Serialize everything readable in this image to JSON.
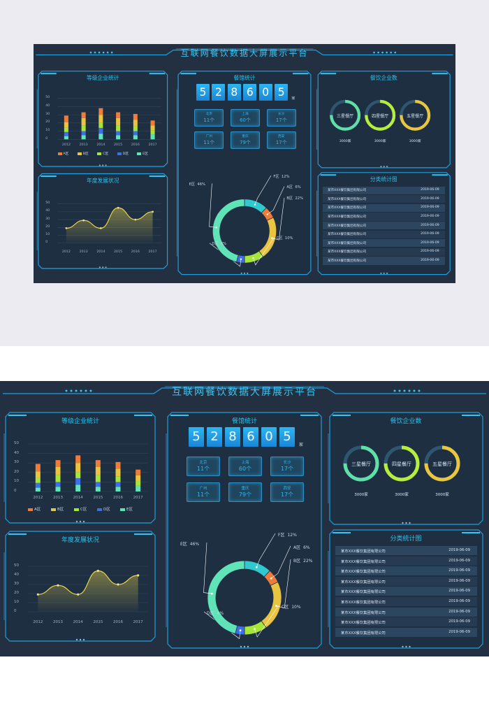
{
  "title": "互联网餐饮数据大屏展示平台",
  "panels": {
    "grade": {
      "title": "等级企业统计"
    },
    "annual": {
      "title": "年度发展状况"
    },
    "restaurant": {
      "title": "餐馆统计"
    },
    "enterprise": {
      "title": "餐饮企业数"
    },
    "category": {
      "title": "分类统计图"
    }
  },
  "counter": {
    "digits": [
      "5",
      "2",
      "8",
      "6",
      "0",
      "5"
    ],
    "unit": "家"
  },
  "cities": [
    {
      "name": "北京",
      "count": "11个"
    },
    {
      "name": "上海",
      "count": "60个"
    },
    {
      "name": "长沙",
      "count": "17个"
    },
    {
      "name": "广州",
      "count": "11个"
    },
    {
      "name": "重庆",
      "count": "79个"
    },
    {
      "name": "西安",
      "count": "17个"
    }
  ],
  "rings": [
    {
      "label": "三星餐厅",
      "value": "3000家",
      "color": "#5ee0a8"
    },
    {
      "label": "四星餐厅",
      "value": "3000家",
      "color": "#b7ee3d"
    },
    {
      "label": "五星餐厅",
      "value": "3000家",
      "color": "#e9c640"
    }
  ],
  "rows": [
    {
      "name": "某市XXX餐饮集团有限公司",
      "date": "2019-06-09"
    },
    {
      "name": "某市XXX餐饮集团有限公司",
      "date": "2019-06-09"
    },
    {
      "name": "某市XXX餐饮集团有限公司",
      "date": "2019-06-09"
    },
    {
      "name": "某市XXX餐饮集团有限公司",
      "date": "2019-06-09"
    },
    {
      "name": "某市XXX餐饮集团有限公司",
      "date": "2019-06-09"
    },
    {
      "name": "某市XXX餐饮集团有限公司",
      "date": "2019-06-09"
    },
    {
      "name": "某市XXX餐饮集团有限公司",
      "date": "2019-06-09"
    },
    {
      "name": "某市XXX餐饮集团有限公司",
      "date": "2019-06-09"
    },
    {
      "name": "某市XXX餐饮集团有限公司",
      "date": "2019-06-09"
    }
  ],
  "colors": {
    "background": "#233042",
    "frame": "#1e9fdc",
    "accent": "#37c6f2",
    "digit": "#2cb6f3"
  },
  "chart_data": [
    {
      "type": "bar",
      "title": "等级企业统计",
      "stacked": true,
      "categories": [
        "2012",
        "2013",
        "2014",
        "2015",
        "2016",
        "2017"
      ],
      "series": [
        {
          "name": "A区",
          "values": [
            8,
            7,
            8,
            7,
            7,
            6
          ],
          "color": "#f07c3a"
        },
        {
          "name": "B区",
          "values": [
            7,
            9,
            10,
            9,
            8,
            6
          ],
          "color": "#e8c440"
        },
        {
          "name": "C区",
          "values": [
            5,
            7,
            6,
            7,
            6,
            5
          ],
          "color": "#a6e63a"
        },
        {
          "name": "D区",
          "values": [
            5,
            5,
            7,
            5,
            5,
            0
          ],
          "color": "#3f6fe8"
        },
        {
          "name": "E区",
          "values": [
            4,
            5,
            7,
            5,
            5,
            6
          ],
          "color": "#5fe3b7"
        }
      ],
      "ylim": [
        0,
        50
      ],
      "yticks": [
        0,
        10,
        20,
        30,
        40,
        50
      ],
      "grid": true,
      "legend": "bottom"
    },
    {
      "type": "line",
      "title": "年度发展状况",
      "x": [
        "2012",
        "2013",
        "2014",
        "2015",
        "2016",
        "2017"
      ],
      "series": [
        {
          "values": [
            19,
            29,
            19,
            45,
            30,
            40
          ],
          "color": "#e8d34a"
        }
      ],
      "ylim": [
        0,
        50
      ],
      "yticks": [
        0,
        10,
        20,
        30,
        40,
        50
      ],
      "smooth": true,
      "area": true
    },
    {
      "type": "pie",
      "title": "餐馆统计",
      "donut": true,
      "slices": [
        {
          "label": "F区",
          "value": 12,
          "pct": "12%",
          "color": "#2fc9cf"
        },
        {
          "label": "A区",
          "value": 6,
          "pct": "6%",
          "color": "#f07c3a"
        },
        {
          "label": "B区",
          "value": 22,
          "pct": "22%",
          "color": "#e8c440"
        },
        {
          "label": "C区",
          "value": 10,
          "pct": "10%",
          "color": "#a6e63a"
        },
        {
          "label": "D区",
          "value": 4,
          "pct": "4%",
          "color": "#3f6fe8"
        },
        {
          "label": "E区",
          "value": 46,
          "pct": "46%",
          "color": "#5fe3b7"
        }
      ]
    }
  ]
}
